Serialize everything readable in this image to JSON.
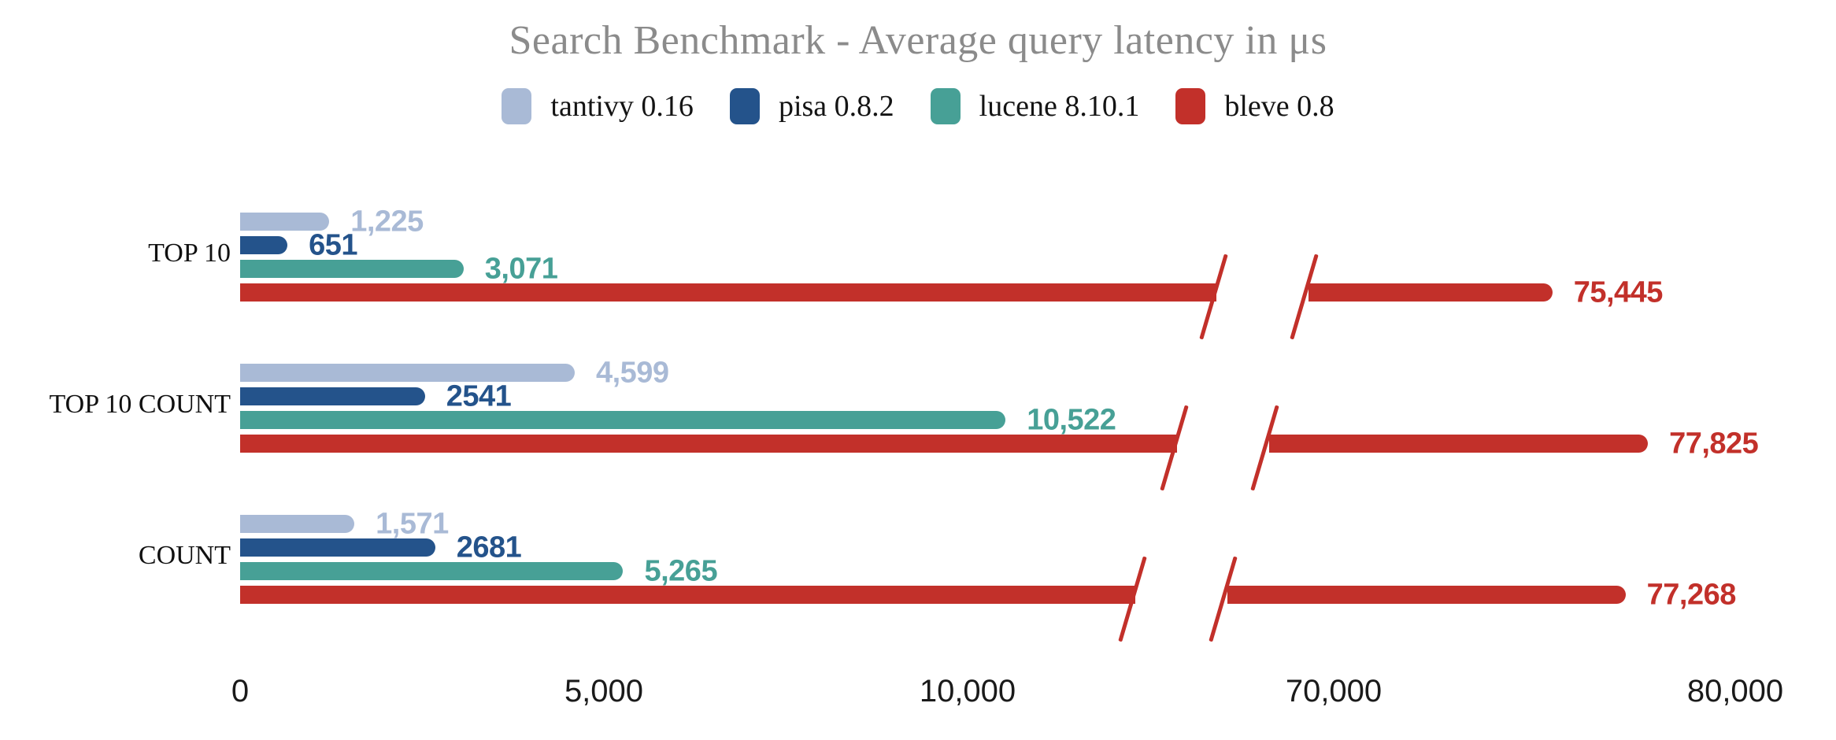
{
  "title": "Search Benchmark - Average query latency in μs",
  "chart_data": {
    "type": "bar",
    "orientation": "horizontal",
    "title": "Search Benchmark - Average query latency in μs",
    "categories": [
      "TOP 10",
      "TOP 10 COUNT",
      "COUNT"
    ],
    "series": [
      {
        "name": "tantivy 0.16",
        "color": "#a9bad6",
        "values": [
          1225,
          4599,
          1571
        ],
        "labels": [
          "1,225",
          "4,599",
          "1,571"
        ]
      },
      {
        "name": "pisa 0.8.2",
        "color": "#24538b",
        "values": [
          651,
          2541,
          2681
        ],
        "labels": [
          "651",
          "2541",
          "2681"
        ]
      },
      {
        "name": "lucene 8.10.1",
        "color": "#47a096",
        "values": [
          3071,
          10522,
          5265
        ],
        "labels": [
          "3,071",
          "10,522",
          "5,265"
        ]
      },
      {
        "name": "bleve 0.8",
        "color": "#c2302a",
        "values": [
          75445,
          77825,
          77268
        ],
        "labels": [
          "75,445",
          "77,825",
          "77,268"
        ],
        "broken_axis": true
      }
    ],
    "x_axis": {
      "ticks": [
        {
          "value": 0,
          "label": "0"
        },
        {
          "value": 5000,
          "label": "5,000"
        },
        {
          "value": 10000,
          "label": "10,000"
        },
        {
          "value": 70000,
          "label": "70,000"
        },
        {
          "value": 80000,
          "label": "80,000"
        }
      ],
      "break_between": [
        12000,
        64000
      ]
    },
    "legend_position": "top",
    "grid": false,
    "title_color": "#8b8b8b",
    "text_color": "#141414"
  }
}
